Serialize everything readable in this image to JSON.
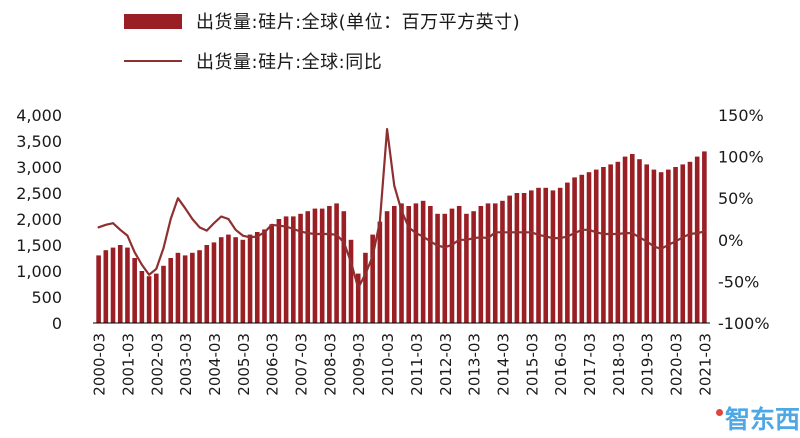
{
  "legend": {
    "bar_label": "出货量:硅片:全球(单位：百万平方英寸)",
    "line_label": "出货量:硅片:全球:同比"
  },
  "colors": {
    "bar": "#9a1f24",
    "line": "#8f3030",
    "axis_text": "#1a1a1a",
    "axis_line": "#000000",
    "watermark_blue": "#45a4e5",
    "watermark_red": "#e03a2f"
  },
  "watermark": {
    "text": "智东西",
    "sub": "· · · ·"
  },
  "chart_data": {
    "type": "bar",
    "title": "",
    "x": [
      "2000-03",
      "2000-06",
      "2000-09",
      "2000-12",
      "2001-03",
      "2001-06",
      "2001-09",
      "2001-12",
      "2002-03",
      "2002-06",
      "2002-09",
      "2002-12",
      "2003-03",
      "2003-06",
      "2003-09",
      "2003-12",
      "2004-03",
      "2004-06",
      "2004-09",
      "2004-12",
      "2005-03",
      "2005-06",
      "2005-09",
      "2005-12",
      "2006-03",
      "2006-06",
      "2006-09",
      "2006-12",
      "2007-03",
      "2007-06",
      "2007-09",
      "2007-12",
      "2008-03",
      "2008-06",
      "2008-09",
      "2008-12",
      "2009-03",
      "2009-06",
      "2009-09",
      "2009-12",
      "2010-03",
      "2010-06",
      "2010-09",
      "2010-12",
      "2011-03",
      "2011-06",
      "2011-09",
      "2011-12",
      "2012-03",
      "2012-06",
      "2012-09",
      "2012-12",
      "2013-03",
      "2013-06",
      "2013-09",
      "2013-12",
      "2014-03",
      "2014-06",
      "2014-09",
      "2014-12",
      "2015-03",
      "2015-06",
      "2015-09",
      "2015-12",
      "2016-03",
      "2016-06",
      "2016-09",
      "2016-12",
      "2017-03",
      "2017-06",
      "2017-09",
      "2017-12",
      "2018-03",
      "2018-06",
      "2018-09",
      "2018-12",
      "2019-03",
      "2019-06",
      "2019-09",
      "2019-12",
      "2020-03",
      "2020-06",
      "2020-09",
      "2020-12",
      "2021-03"
    ],
    "series": [
      {
        "name": "出货量:硅片:全球(单位：百万平方英寸)",
        "type": "bar",
        "axis": "left",
        "values": [
          1300,
          1400,
          1450,
          1500,
          1450,
          1250,
          1000,
          900,
          950,
          1100,
          1250,
          1350,
          1300,
          1350,
          1400,
          1500,
          1550,
          1650,
          1700,
          1650,
          1600,
          1700,
          1750,
          1800,
          1900,
          2000,
          2050,
          2050,
          2100,
          2150,
          2200,
          2200,
          2250,
          2300,
          2150,
          1600,
          950,
          1350,
          1700,
          1950,
          2150,
          2250,
          2300,
          2250,
          2300,
          2350,
          2250,
          2100,
          2100,
          2200,
          2250,
          2100,
          2150,
          2250,
          2300,
          2300,
          2350,
          2450,
          2500,
          2500,
          2550,
          2600,
          2600,
          2550,
          2600,
          2700,
          2800,
          2850,
          2900,
          2950,
          3000,
          3050,
          3100,
          3200,
          3250,
          3150,
          3050,
          2950,
          2900,
          2950,
          3000,
          3050,
          3100,
          3200,
          3300
        ]
      },
      {
        "name": "出货量:硅片:全球:同比",
        "type": "line",
        "axis": "right",
        "values": [
          15,
          18,
          20,
          12,
          5,
          -15,
          -30,
          -42,
          -35,
          -10,
          25,
          50,
          38,
          25,
          15,
          11,
          20,
          28,
          25,
          12,
          5,
          3,
          4,
          9,
          18,
          17,
          16,
          13,
          10,
          8,
          7,
          7,
          7,
          6,
          -3,
          -27,
          -58,
          -41,
          -20,
          22,
          133,
          65,
          35,
          15,
          8,
          4,
          -2,
          -7,
          -9,
          -6,
          0,
          0,
          2,
          3,
          2,
          9,
          9,
          9,
          9,
          9,
          9,
          6,
          4,
          2,
          2,
          4,
          8,
          12,
          12,
          9,
          7,
          7,
          7,
          8,
          8,
          3,
          -2,
          -8,
          -11,
          -6,
          -2,
          3,
          7,
          8,
          10
        ]
      }
    ],
    "left_axis": {
      "min": 0,
      "max": 4000,
      "ticks": [
        {
          "v": 4000,
          "label": "4,000"
        },
        {
          "v": 3500,
          "label": "3,500"
        },
        {
          "v": 3000,
          "label": "3,000"
        },
        {
          "v": 2500,
          "label": "2,500"
        },
        {
          "v": 2000,
          "label": "2,000"
        },
        {
          "v": 1500,
          "label": "1,500"
        },
        {
          "v": 1000,
          "label": "1,000"
        },
        {
          "v": 500,
          "label": "500"
        },
        {
          "v": 0,
          "label": "0"
        }
      ]
    },
    "right_axis": {
      "min": -100,
      "max": 150,
      "ticks": [
        {
          "v": 150,
          "label": "150%"
        },
        {
          "v": 100,
          "label": "100%"
        },
        {
          "v": 50,
          "label": "50%"
        },
        {
          "v": 0,
          "label": "0%"
        },
        {
          "v": -50,
          "label": "-50%"
        },
        {
          "v": -100,
          "label": "-100%"
        }
      ]
    },
    "x_tick_every": 4,
    "grid": false,
    "legend_position": "top-left"
  }
}
